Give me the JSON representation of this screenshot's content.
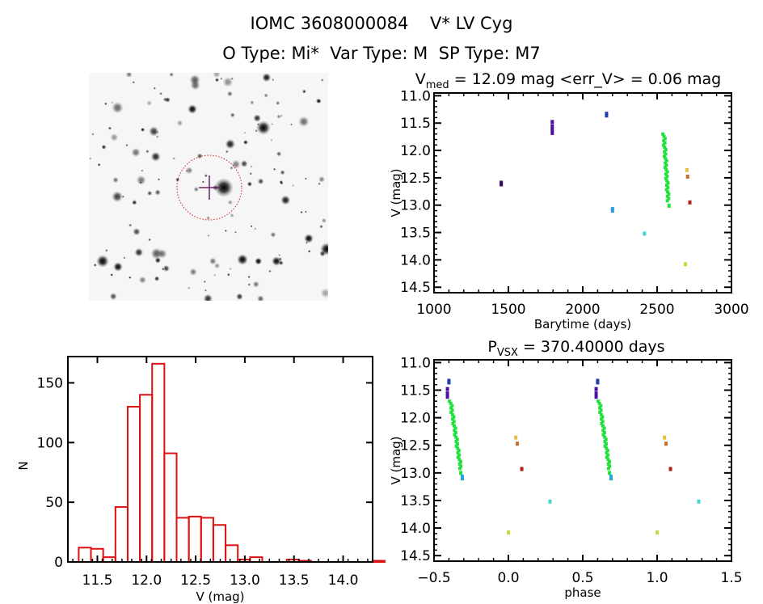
{
  "header": {
    "title_line1": "IOMC 3608000084    V* LV Cyg",
    "title_line2": "O Type: Mi*  Var Type: M  SP Type: M7"
  },
  "sky_image": {
    "description": "Grayscale finder chart with target marked by red dotted circle and crosshair",
    "target_marker_color": "#cc2222",
    "crosshair_color": "#6a2060"
  },
  "chart_data": [
    {
      "id": "light_curve",
      "type": "scatter",
      "title": "V_med = 12.09 mag <err_V> = 0.06 mag",
      "title_main": "V",
      "title_sub": "med",
      "title_rest": " = 12.09 mag <err_V> = 0.06 mag",
      "xlabel": "Barytime (days)",
      "ylabel": "V (mag)",
      "xlim": [
        1000,
        3000
      ],
      "ylim": [
        14.6,
        10.95
      ],
      "y_inverted": true,
      "xticks": [
        1000,
        1500,
        2000,
        2500,
        3000
      ],
      "xtick_labels": [
        "1000",
        "1500",
        "2000",
        "2500",
        "3000"
      ],
      "yticks": [
        11.0,
        11.5,
        12.0,
        12.5,
        13.0,
        13.5,
        14.0,
        14.5
      ],
      "ytick_labels": [
        "11.0",
        "11.5",
        "12.0",
        "12.5",
        "13.0",
        "13.5",
        "14.0",
        "14.5"
      ],
      "series": [
        {
          "name": "g1",
          "color": "#3a0a5a",
          "points": [
            [
              1452,
              12.59
            ],
            [
              1452,
              12.62
            ]
          ]
        },
        {
          "name": "g2",
          "color": "#4a10a0",
          "points": [
            [
              1795,
              11.48
            ],
            [
              1795,
              11.56
            ],
            [
              1795,
              11.62
            ],
            [
              1795,
              11.68
            ]
          ]
        },
        {
          "name": "g3",
          "color": "#2040b0",
          "points": [
            [
              2160,
              11.33
            ],
            [
              2160,
              11.36
            ]
          ]
        },
        {
          "name": "g4",
          "color": "#2aa0e0",
          "points": [
            [
              2200,
              13.07
            ],
            [
              2200,
              13.1
            ]
          ]
        },
        {
          "name": "g5",
          "color": "#40d8d0",
          "points": [
            [
              2415,
              13.52
            ]
          ]
        },
        {
          "name": "green_run",
          "color": "#22e040",
          "line_from": [
            2545,
            11.7
          ],
          "line_to": [
            2575,
            12.92
          ],
          "points": [
            [
              2580,
              13.01
            ]
          ]
        },
        {
          "name": "g7",
          "color": "#e0c040",
          "points": [
            [
              2700,
              12.36
            ]
          ]
        },
        {
          "name": "g8",
          "color": "#c07030",
          "points": [
            [
              2705,
              12.48
            ]
          ]
        },
        {
          "name": "g9",
          "color": "#b02020",
          "points": [
            [
              2720,
              12.95
            ]
          ]
        },
        {
          "name": "g10",
          "color": "#b8e040",
          "points": [
            [
              2690,
              14.08
            ]
          ]
        }
      ]
    },
    {
      "id": "histogram",
      "type": "bar",
      "title": "",
      "xlabel": "V (mag)",
      "ylabel": "N",
      "xlim": [
        11.2,
        14.3
      ],
      "ylim": [
        0,
        172
      ],
      "xticks": [
        11.5,
        12.0,
        12.5,
        13.0,
        13.5,
        14.0
      ],
      "xtick_labels": [
        "11.5",
        "12.0",
        "12.5",
        "13.0",
        "13.5",
        "14.0"
      ],
      "yticks": [
        0,
        50,
        100,
        150
      ],
      "ytick_labels": [
        "0",
        "50",
        "100",
        "150"
      ],
      "bar_color": "#dd1111",
      "bin_start": 11.31,
      "bin_width": 0.1245,
      "values": [
        12,
        11,
        4,
        46,
        130,
        140,
        166,
        91,
        37,
        38,
        37,
        31,
        14,
        2,
        4,
        0,
        0,
        2,
        1,
        0,
        0,
        0,
        0,
        0,
        1
      ]
    },
    {
      "id": "phase_curve",
      "type": "scatter",
      "title_main": "P",
      "title_sub": "VSX",
      "title_rest": " = 370.40000 days",
      "title": "P_VSX = 370.40000 days",
      "xlabel": "phase",
      "ylabel": "V (mag)",
      "xlim": [
        -0.5,
        1.5
      ],
      "ylim": [
        14.6,
        10.95
      ],
      "y_inverted": true,
      "xticks": [
        -0.5,
        0.0,
        0.5,
        1.0,
        1.5
      ],
      "xtick_labels": [
        "−0.5",
        "0.0",
        "0.5",
        "1.0",
        "1.5"
      ],
      "yticks": [
        11.0,
        11.5,
        12.0,
        12.5,
        13.0,
        13.5,
        14.0,
        14.5
      ],
      "ytick_labels": [
        "11.0",
        "11.5",
        "12.0",
        "12.5",
        "13.0",
        "13.5",
        "14.0",
        "14.5"
      ],
      "series": [
        {
          "name": "g3",
          "color": "#2040b0",
          "points": [
            [
              -0.4,
              11.33
            ],
            [
              -0.4,
              11.36
            ],
            [
              0.6,
              11.33
            ],
            [
              0.6,
              11.36
            ]
          ]
        },
        {
          "name": "g2",
          "color": "#4a10a0",
          "points": [
            [
              -0.41,
              11.48
            ],
            [
              -0.41,
              11.56
            ],
            [
              -0.41,
              11.62
            ],
            [
              0.59,
              11.48
            ],
            [
              0.59,
              11.56
            ],
            [
              0.59,
              11.62
            ]
          ]
        },
        {
          "name": "green_run",
          "color": "#22e040",
          "line_from": [
            -0.39,
            11.7
          ],
          "line_to": [
            -0.32,
            12.92
          ],
          "line_from2": [
            0.61,
            11.7
          ],
          "line_to2": [
            0.68,
            12.92
          ],
          "points": [
            [
              -0.32,
              13.0
            ],
            [
              0.68,
              13.0
            ]
          ]
        },
        {
          "name": "g4",
          "color": "#2aa0e0",
          "points": [
            [
              -0.31,
              13.07
            ],
            [
              -0.31,
              13.1
            ],
            [
              0.69,
              13.07
            ],
            [
              0.69,
              13.1
            ]
          ]
        },
        {
          "name": "g7",
          "color": "#e0c040",
          "points": [
            [
              0.05,
              12.36
            ],
            [
              1.05,
              12.36
            ]
          ]
        },
        {
          "name": "g8",
          "color": "#c07030",
          "points": [
            [
              0.06,
              12.47
            ],
            [
              1.06,
              12.47
            ]
          ]
        },
        {
          "name": "g9",
          "color": "#b02020",
          "points": [
            [
              0.09,
              12.93
            ],
            [
              1.09,
              12.93
            ]
          ]
        },
        {
          "name": "g5",
          "color": "#40d8d0",
          "points": [
            [
              0.28,
              13.52
            ],
            [
              1.28,
              13.52
            ]
          ]
        },
        {
          "name": "g10",
          "color": "#b8e040",
          "points": [
            [
              0.0,
              14.08
            ],
            [
              1.0,
              14.08
            ]
          ]
        }
      ]
    }
  ]
}
